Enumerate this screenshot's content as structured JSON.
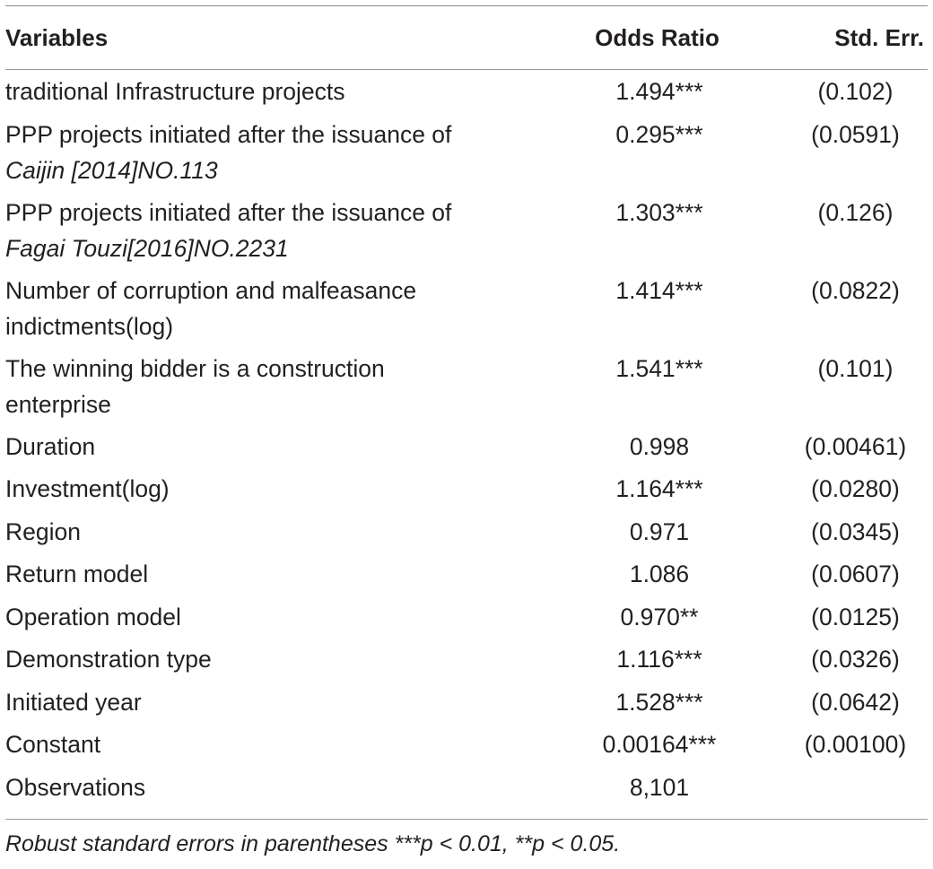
{
  "table": {
    "headers": {
      "variables": "Variables",
      "odds_ratio": "Odds Ratio",
      "std_err": "Std. Err."
    },
    "rows": [
      {
        "line1": "traditional Infrastructure projects",
        "line2": "",
        "odds": "1.494***",
        "se": "(0.102)"
      },
      {
        "line1": "PPP projects initiated after the issuance of",
        "line2": "Caijin [2014]NO.113",
        "odds": "0.295***",
        "se": "(0.0591)"
      },
      {
        "line1": "PPP projects initiated after the issuance of",
        "line2": "Fagai Touzi[2016]NO.2231",
        "odds": "1.303***",
        "se": "(0.126)"
      },
      {
        "line1": "Number of corruption and malfeasance",
        "line2": "indictments(log)",
        "odds": "1.414***",
        "se": "(0.0822)"
      },
      {
        "line1": "The winning bidder is a construction",
        "line2": "enterprise",
        "odds": "1.541***",
        "se": "(0.101)"
      },
      {
        "line1": "Duration",
        "line2": "",
        "odds": "0.998",
        "se": "(0.00461)"
      },
      {
        "line1": "Investment(log)",
        "line2": "",
        "odds": "1.164***",
        "se": "(0.0280)"
      },
      {
        "line1": "Region",
        "line2": "",
        "odds": "0.971",
        "se": "(0.0345)"
      },
      {
        "line1": "Return model",
        "line2": "",
        "odds": "1.086",
        "se": "(0.0607)"
      },
      {
        "line1": "Operation model",
        "line2": "",
        "odds": "0.970**",
        "se": "(0.0125)"
      },
      {
        "line1": "Demonstration type",
        "line2": "",
        "odds": "1.116***",
        "se": "(0.0326)"
      },
      {
        "line1": "Initiated year",
        "line2": "",
        "odds": "1.528***",
        "se": "(0.0642)"
      },
      {
        "line1": "Constant",
        "line2": "",
        "odds": "0.00164***",
        "se": "(0.00100)"
      },
      {
        "line1": "Observations",
        "line2": "",
        "odds": "8,101",
        "se": ""
      }
    ],
    "footnote": "Robust standard errors in parentheses ***p < 0.01, **p < 0.05."
  }
}
